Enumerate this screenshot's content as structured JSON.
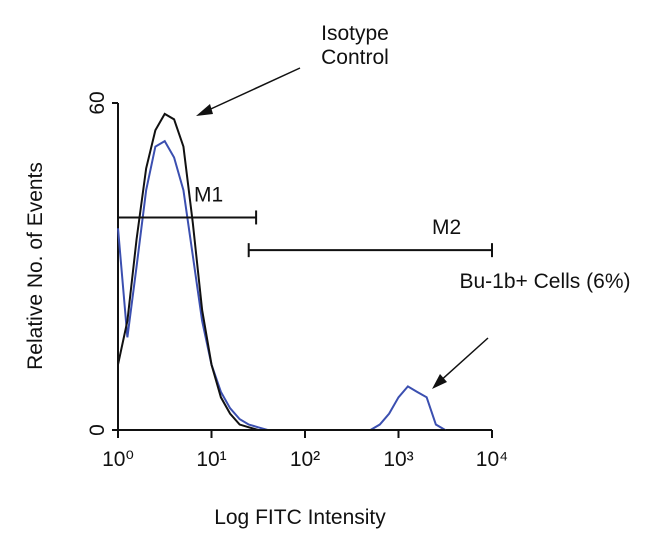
{
  "chart_data": {
    "type": "line",
    "xlabel": "Log FITC Intensity",
    "ylabel": "Relative No. of Events",
    "log_x": true,
    "x": [
      1,
      1.26,
      1.58,
      2,
      2.51,
      3.16,
      3.98,
      5.01,
      6.31,
      7.94,
      10,
      12.6,
      15.8,
      20,
      25.1,
      31.6,
      39.8,
      50.1,
      63.1,
      79.4,
      100,
      126,
      158,
      200,
      251,
      316,
      398,
      501,
      631,
      794,
      1000,
      1260,
      1580,
      2000,
      2510,
      3160
    ],
    "series": [
      {
        "name": "Isotype Control",
        "color": "#111111",
        "values": [
          12,
          20,
          35,
          48,
          55,
          58,
          57,
          52,
          38,
          22,
          12,
          6,
          3,
          1,
          0.5,
          0,
          0,
          0,
          0,
          0,
          0,
          0,
          0,
          0,
          0,
          0,
          0,
          0,
          0,
          0,
          0,
          0,
          0,
          0,
          0,
          0
        ]
      },
      {
        "name": "Bu-1b+ Cells (6%)",
        "color": "#3b4fb0",
        "values": [
          37,
          17,
          30,
          44,
          52,
          53,
          50,
          44,
          32,
          20,
          12,
          7,
          4,
          2,
          1,
          0.5,
          0,
          0,
          0,
          0,
          0,
          0,
          0,
          0,
          0,
          0,
          0,
          0,
          1,
          3,
          6,
          8,
          7,
          6,
          1,
          0
        ]
      }
    ],
    "gates": [
      {
        "name": "M1",
        "x": [
          1,
          30
        ],
        "y": 39
      },
      {
        "name": "M2",
        "x": [
          25,
          10000
        ],
        "y": 33
      }
    ],
    "xlim": [
      1,
      10000
    ],
    "ylim": [
      0,
      60
    ],
    "xticks": [
      {
        "value": 1,
        "label": "10⁰"
      },
      {
        "value": 10,
        "label": "10¹"
      },
      {
        "value": 100,
        "label": "10²"
      },
      {
        "value": 1000,
        "label": "10³"
      },
      {
        "value": 10000,
        "label": "10⁴"
      }
    ],
    "yticks": [
      0,
      60
    ]
  }
}
